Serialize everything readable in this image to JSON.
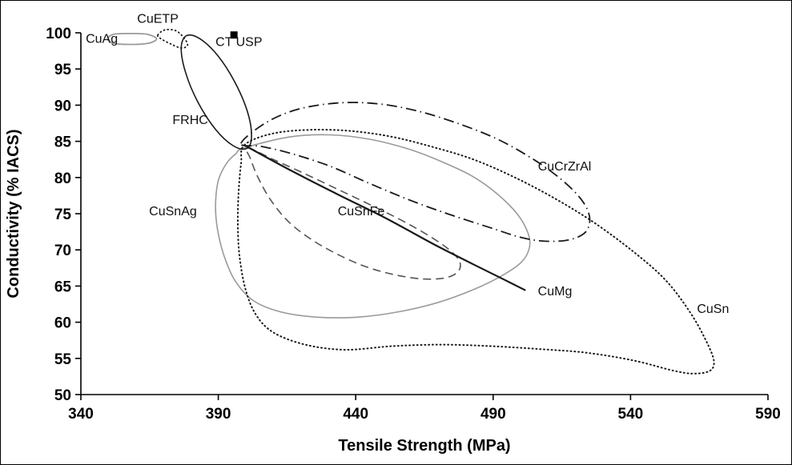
{
  "chart_data": {
    "type": "area",
    "title": "",
    "xlabel": "Tensile Strength (MPa)",
    "ylabel": "Conductivity (% IACS)",
    "xlim": [
      340,
      590
    ],
    "ylim": [
      50,
      100
    ],
    "x_ticks": [
      340,
      390,
      440,
      490,
      540,
      590
    ],
    "y_ticks": [
      50,
      55,
      60,
      65,
      70,
      75,
      80,
      85,
      90,
      95,
      100
    ],
    "grid": false,
    "legend": "none",
    "colors": {
      "black": "#1a1a1a",
      "gray": "#9a9a9a",
      "dim": "#555555"
    },
    "series": [
      {
        "name": "CuAg",
        "slug": "cuag",
        "style": "solid",
        "color": "gray",
        "width": 1.8,
        "closed": true,
        "label": {
          "x": 347.6,
          "y": 98.6
        },
        "points": [
          [
            349.8,
            99.2
          ],
          [
            352,
            99.8
          ],
          [
            358,
            99.9
          ],
          [
            364,
            99.8
          ],
          [
            367.5,
            99.2
          ],
          [
            365,
            98.6
          ],
          [
            358,
            98.4
          ],
          [
            351.5,
            98.6
          ]
        ]
      },
      {
        "name": "CuSnAg",
        "slug": "cusnag",
        "style": "solid",
        "color": "gray",
        "width": 1.6,
        "closed": true,
        "label": {
          "x": 373.5,
          "y": 74.8
        },
        "points": [
          [
            399.5,
            84.1
          ],
          [
            415.8,
            85.6
          ],
          [
            430.4,
            85.9
          ],
          [
            444.9,
            85.3
          ],
          [
            459.5,
            83.9
          ],
          [
            471.2,
            82.2
          ],
          [
            482.8,
            80.1
          ],
          [
            491.6,
            77.7
          ],
          [
            498.9,
            74.9
          ],
          [
            502.7,
            72.3
          ],
          [
            503.2,
            70.3
          ],
          [
            500.3,
            68.3
          ],
          [
            493.1,
            66.4
          ],
          [
            482.8,
            64.5
          ],
          [
            469.7,
            62.7
          ],
          [
            455.1,
            61.4
          ],
          [
            440.6,
            60.7
          ],
          [
            426,
            60.7
          ],
          [
            412.9,
            61.4
          ],
          [
            402.7,
            63
          ],
          [
            396,
            65.8
          ],
          [
            391.9,
            69.4
          ],
          [
            389.6,
            73.1
          ],
          [
            389,
            76.4
          ],
          [
            390.1,
            79.7
          ],
          [
            393.1,
            82
          ],
          [
            396.4,
            83.3
          ]
        ]
      },
      {
        "name": "CuSn",
        "slug": "cusn",
        "style": "dotted",
        "color": "black",
        "width": 2,
        "closed": true,
        "label": {
          "x": 570,
          "y": 61.3
        },
        "points": [
          [
            399.5,
            84.5
          ],
          [
            410,
            86.1
          ],
          [
            424.5,
            86.6
          ],
          [
            439.1,
            86.4
          ],
          [
            453.6,
            85.6
          ],
          [
            468.2,
            84.2
          ],
          [
            482.8,
            82.5
          ],
          [
            497.4,
            80.1
          ],
          [
            512,
            77.2
          ],
          [
            526.6,
            73.8
          ],
          [
            541.2,
            69.7
          ],
          [
            552.8,
            65.8
          ],
          [
            561.6,
            61.4
          ],
          [
            567.4,
            57.5
          ],
          [
            570.3,
            54.7
          ],
          [
            568.9,
            53.3
          ],
          [
            563,
            52.9
          ],
          [
            555.7,
            53.3
          ],
          [
            541.2,
            54.7
          ],
          [
            523.7,
            55.8
          ],
          [
            506.2,
            56.3
          ],
          [
            488.7,
            56.7
          ],
          [
            471.2,
            56.9
          ],
          [
            453.6,
            56.7
          ],
          [
            436.2,
            56.2
          ],
          [
            421.6,
            56.9
          ],
          [
            410,
            58.6
          ],
          [
            403.6,
            61.1
          ],
          [
            399.8,
            64.7
          ],
          [
            397.7,
            69.2
          ],
          [
            397.1,
            73.6
          ],
          [
            397.4,
            78.1
          ],
          [
            398.3,
            82
          ]
        ]
      },
      {
        "name": "CuSnFe",
        "slug": "cusnfe",
        "style": "dashed",
        "color": "dim",
        "width": 1.6,
        "closed": true,
        "label": {
          "x": 442,
          "y": 74.8
        },
        "points": [
          [
            400.6,
            84.1
          ],
          [
            410,
            82.5
          ],
          [
            421.6,
            80.5
          ],
          [
            433.3,
            78.4
          ],
          [
            444.9,
            76.3
          ],
          [
            456.6,
            74.1
          ],
          [
            466.8,
            71.9
          ],
          [
            474.1,
            70
          ],
          [
            477.9,
            68.3
          ],
          [
            477,
            66.9
          ],
          [
            472.1,
            66.1
          ],
          [
            463.9,
            66
          ],
          [
            453.7,
            66.6
          ],
          [
            443.5,
            67.7
          ],
          [
            433.3,
            69.4
          ],
          [
            424,
            71.4
          ],
          [
            415.8,
            73.8
          ],
          [
            409.4,
            76.7
          ],
          [
            404.7,
            79.8
          ],
          [
            401.8,
            82.5
          ]
        ]
      },
      {
        "name": "CuCrZrAl",
        "slug": "cucrzral",
        "style": "dashdot",
        "color": "black",
        "width": 1.8,
        "closed": true,
        "label": {
          "x": 516,
          "y": 81
        },
        "points": [
          [
            398.3,
            84.7
          ],
          [
            407,
            87.5
          ],
          [
            418.7,
            89.4
          ],
          [
            433.3,
            90.3
          ],
          [
            447.8,
            90.2
          ],
          [
            462.4,
            89.2
          ],
          [
            477,
            87.5
          ],
          [
            491.6,
            85.3
          ],
          [
            504.7,
            82.5
          ],
          [
            514.9,
            79.7
          ],
          [
            522.2,
            76.9
          ],
          [
            525.1,
            74.5
          ],
          [
            523.7,
            72.5
          ],
          [
            517.8,
            71.4
          ],
          [
            509.1,
            71.2
          ],
          [
            500.3,
            71.7
          ],
          [
            488.7,
            73.1
          ],
          [
            474.1,
            74.9
          ],
          [
            459.5,
            76.9
          ],
          [
            444.9,
            79.2
          ],
          [
            430.4,
            81.6
          ],
          [
            415.8,
            83.4
          ],
          [
            405.6,
            84.3
          ]
        ]
      },
      {
        "name": "CuETP",
        "slug": "cuetp",
        "style": "dotted",
        "color": "black",
        "width": 1.8,
        "closed": true,
        "label": {
          "x": 368,
          "y": 101.4
        },
        "points": [
          [
            368,
            99.7
          ],
          [
            370.5,
            100.4
          ],
          [
            374.5,
            100.3
          ],
          [
            377.5,
            99.3
          ],
          [
            378.8,
            98.3
          ],
          [
            376.5,
            97.9
          ],
          [
            372.5,
            98.5
          ],
          [
            369,
            99.2
          ]
        ]
      },
      {
        "name": "FRHC",
        "slug": "frhc",
        "style": "solid",
        "color": "black",
        "width": 1.6,
        "closed": true,
        "label": {
          "x": 379.8,
          "y": 87.4
        },
        "points": [
          [
            400.3,
            84
          ],
          [
            395.4,
            84.4
          ],
          [
            388.9,
            86.7
          ],
          [
            382.6,
            90.4
          ],
          [
            378.1,
            94.5
          ],
          [
            376.5,
            97.9
          ],
          [
            378.4,
            99.6
          ],
          [
            383.2,
            99.2
          ],
          [
            389.7,
            96.9
          ],
          [
            396,
            93.2
          ],
          [
            400.6,
            89.1
          ],
          [
            402.1,
            85.7
          ]
        ]
      },
      {
        "name": "CuMg",
        "slug": "cumg",
        "style": "solid",
        "color": "black",
        "width": 2.2,
        "closed": false,
        "label": {
          "x": 512.5,
          "y": 63.7
        },
        "points": [
          [
            399.8,
            84.4
          ],
          [
            415.8,
            81.1
          ],
          [
            433.3,
            77.7
          ],
          [
            450.8,
            74.4
          ],
          [
            468.3,
            70.8
          ],
          [
            482.8,
            68
          ],
          [
            494.5,
            65.8
          ],
          [
            501.8,
            64.4
          ]
        ]
      }
    ],
    "markers": [
      {
        "name": "CT USP",
        "slug": "ct-usp",
        "shape": "square",
        "x": 395.7,
        "y": 99.7,
        "label": {
          "x": 397.5,
          "y": 98.2
        }
      }
    ]
  }
}
